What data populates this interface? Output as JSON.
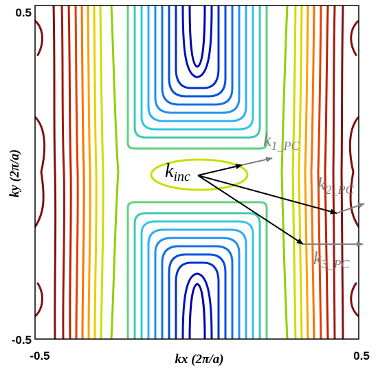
{
  "chart_data": {
    "type": "contour",
    "title": "",
    "xlabel": "kx (2π/a)",
    "ylabel": "ky (2π/a)",
    "xlim": [
      -0.5,
      0.5
    ],
    "ylim": [
      -0.5,
      0.5
    ],
    "x_ticks": [
      "-0.5",
      "0.5"
    ],
    "y_ticks": [
      "0.5",
      "-0.5"
    ],
    "colormap": "jet",
    "grid": false,
    "legend": "none"
  },
  "vectors": {
    "incident": {
      "main": "k",
      "sub": "inc",
      "color": "#000000"
    },
    "refracted": [
      {
        "main": "k",
        "sub": "1_PC",
        "color": "#808080"
      },
      {
        "main": "k",
        "sub": "2_PC",
        "color": "#808080"
      },
      {
        "main": "k",
        "sub": "3_PC",
        "color": "#808080"
      }
    ]
  },
  "colors": {
    "frame": "#000000",
    "contour_blue": "#0000c8",
    "contour_cyan": "#30c8e0",
    "contour_green": "#60d080",
    "contour_yellow": "#c8e000",
    "contour_orange": "#ff9000",
    "contour_red": "#c02000",
    "contour_darkred": "#801010"
  }
}
